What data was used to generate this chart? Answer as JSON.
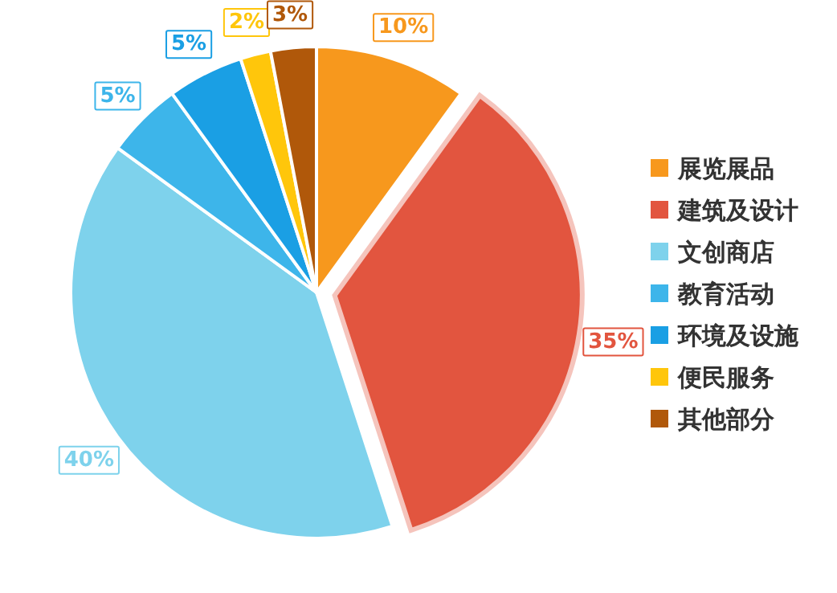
{
  "chart_data": {
    "type": "pie",
    "categories": [
      "展览展品",
      "建筑及设计",
      "文创商店",
      "教育活动",
      "环境及设施",
      "便民服务",
      "其他部分"
    ],
    "values": [
      10,
      35,
      40,
      5,
      5,
      2,
      3
    ],
    "colors": [
      "#f7981d",
      "#e2553f",
      "#7ed2ec",
      "#3db5ea",
      "#1a9fe4",
      "#ffc60b",
      "#b0580a"
    ],
    "value_labels": [
      "10%",
      "35%",
      "40%",
      "5%",
      "5%",
      "2%",
      "3%"
    ],
    "legend": "right"
  }
}
